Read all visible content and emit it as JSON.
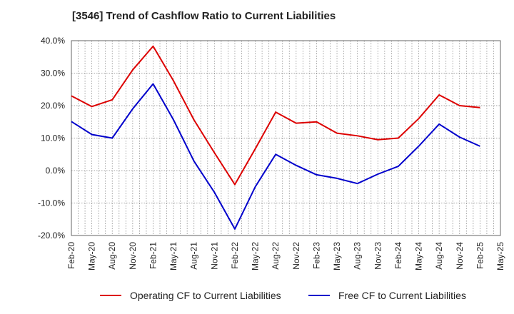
{
  "title": "[3546]  Trend of Cashflow Ratio to Current Liabilities",
  "colors": {
    "operating": "#dd0000",
    "free": "#0000cc",
    "grid": "#888888",
    "axis": "#666666"
  },
  "chart_data": {
    "type": "line",
    "title": "[3546]  Trend of Cashflow Ratio to Current Liabilities",
    "xlabel": "",
    "ylabel": "",
    "ylim": [
      -20,
      40
    ],
    "y_ticks": [
      -20,
      -10,
      0,
      10,
      20,
      30,
      40
    ],
    "y_tick_labels": [
      "-20.0%",
      "-10.0%",
      "0.0%",
      "10.0%",
      "20.0%",
      "30.0%",
      "40.0%"
    ],
    "categories": [
      "Feb-20",
      "May-20",
      "Aug-20",
      "Nov-20",
      "Feb-21",
      "May-21",
      "Aug-21",
      "Nov-21",
      "Feb-22",
      "May-22",
      "Aug-22",
      "Nov-22",
      "Feb-23",
      "May-23",
      "Aug-23",
      "Nov-23",
      "Feb-24",
      "May-24",
      "Aug-24",
      "Nov-24",
      "Feb-25",
      "May-25"
    ],
    "grid": true,
    "legend_position": "bottom",
    "series": [
      {
        "name": "Operating CF to Current Liabilities",
        "color": "#dd0000",
        "values": [
          23.0,
          19.7,
          21.8,
          31.0,
          38.3,
          27.6,
          15.6,
          5.5,
          -4.3,
          6.7,
          18.0,
          14.6,
          15.0,
          11.5,
          10.7,
          9.5,
          10.0,
          16.0,
          23.3,
          20.0,
          19.4,
          null
        ]
      },
      {
        "name": "Free CF to Current Liabilities",
        "color": "#0000cc",
        "values": [
          15.1,
          11.1,
          10.0,
          19.0,
          26.7,
          15.6,
          2.9,
          -6.7,
          -18.0,
          -5.0,
          5.0,
          1.6,
          -1.3,
          -2.4,
          -4.0,
          -1.1,
          1.3,
          7.5,
          14.3,
          10.3,
          7.5,
          null
        ]
      }
    ]
  }
}
